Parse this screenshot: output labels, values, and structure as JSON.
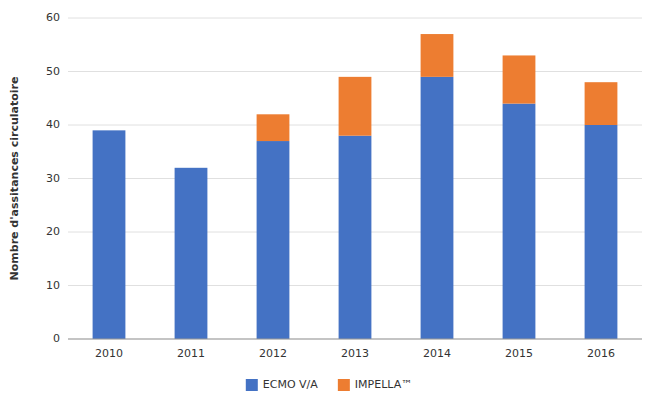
{
  "chart_data": {
    "type": "bar",
    "stacked": true,
    "ylabel": "Nombre d'assitances circulatoire",
    "categories": [
      "2010",
      "2011",
      "2012",
      "2013",
      "2014",
      "2015",
      "2016"
    ],
    "series": [
      {
        "name": "ECMO V/A",
        "color": "#4472c4",
        "values": [
          39,
          32,
          37,
          38,
          49,
          44,
          40
        ]
      },
      {
        "name": "IMPELLA™",
        "color": "#ed7d31",
        "values": [
          0,
          0,
          5,
          11,
          8,
          9,
          8
        ]
      }
    ],
    "ylim": [
      0,
      60
    ],
    "yticks": [
      0,
      10,
      20,
      30,
      40,
      50,
      60
    ],
    "grid": true,
    "legend": "bottom"
  }
}
